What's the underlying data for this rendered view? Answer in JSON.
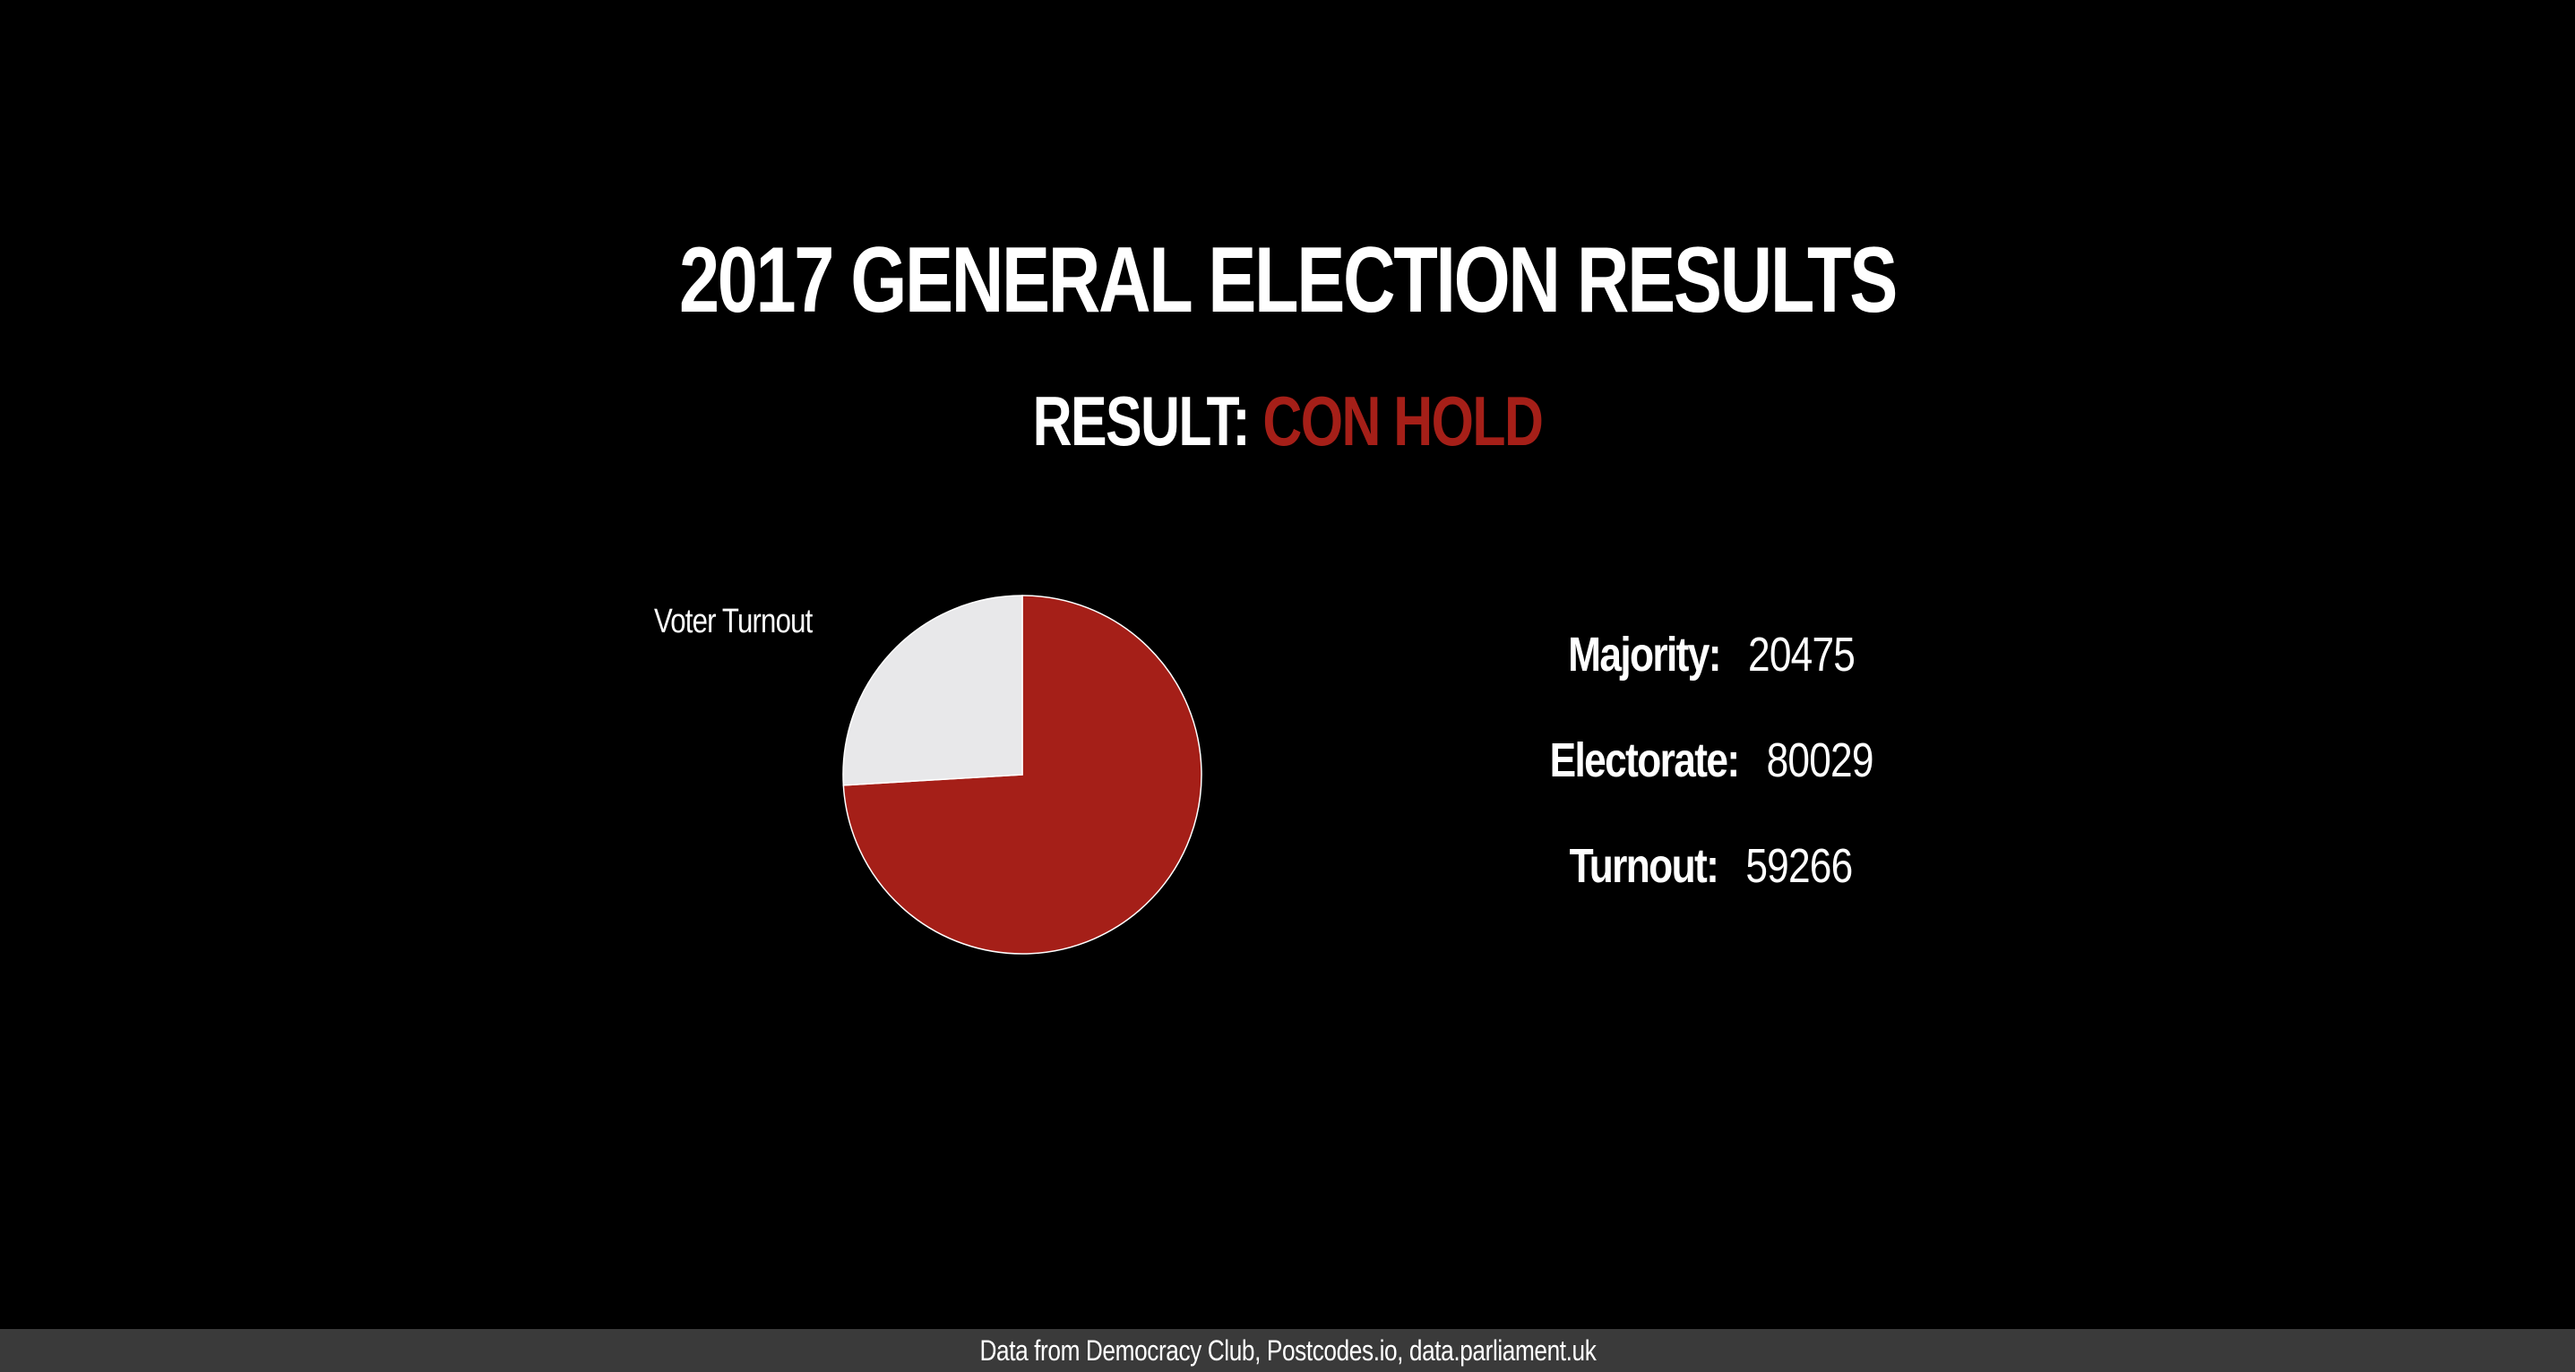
{
  "header": {
    "title": "2017 GENERAL ELECTION RESULTS",
    "result_label": "RESULT:",
    "result_value": "CON HOLD"
  },
  "colors": {
    "background": "#000000",
    "accent": "#a51f18",
    "pie_remainder": "#e8e8ea",
    "footer_bg": "#3a3a3a"
  },
  "chart_data": {
    "type": "pie",
    "title": "Voter Turnout",
    "slices": [
      {
        "name": "",
        "value": 59266,
        "color": "#a51f18"
      },
      {
        "name": "",
        "value": 20763,
        "color": "#e8e8ea"
      }
    ]
  },
  "stats": [
    {
      "label": "Majority:",
      "value": "20475"
    },
    {
      "label": "Electorate:",
      "value": "80029"
    },
    {
      "label": "Turnout:",
      "value": "59266"
    }
  ],
  "footer": {
    "text": "Data from Democracy Club, Postcodes.io, data.parliament.uk"
  }
}
